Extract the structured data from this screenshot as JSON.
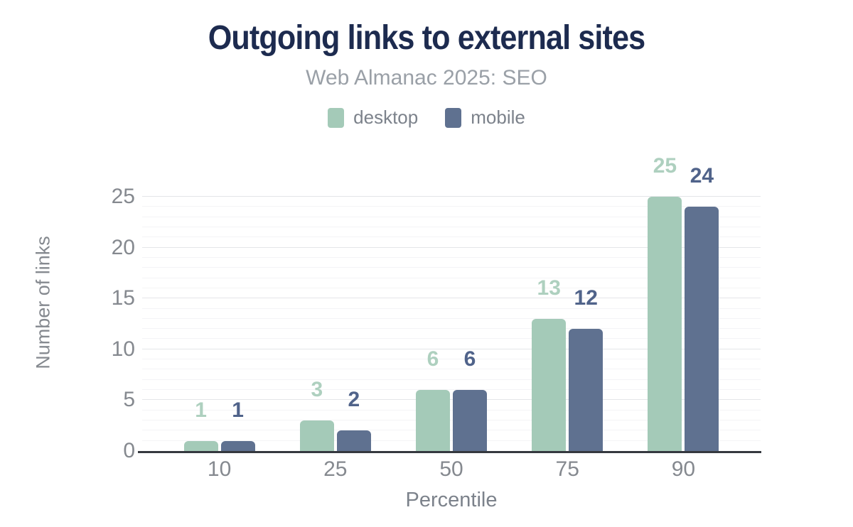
{
  "chart_data": {
    "type": "bar",
    "title": "Outgoing links to external sites",
    "subtitle": "Web Almanac 2025: SEO",
    "categories": [
      "10",
      "25",
      "50",
      "75",
      "90"
    ],
    "series": [
      {
        "name": "desktop",
        "color": "#a4cab8",
        "label_color": "#aed0bf",
        "values": [
          1,
          3,
          6,
          13,
          25
        ]
      },
      {
        "name": "mobile",
        "color": "#5f7190",
        "label_color": "#50638a",
        "values": [
          1,
          2,
          6,
          12,
          24
        ]
      }
    ],
    "xlabel": "Percentile",
    "ylabel": "Number of links",
    "ylim": [
      0,
      25
    ],
    "yticks": [
      0,
      5,
      10,
      15,
      20,
      25
    ],
    "grid": {
      "orientation": "horizontal",
      "minor_step": 1,
      "major_step": 5
    },
    "legend_position": "top",
    "bar_labels": true
  },
  "colors": {
    "title": "#1d2b4f",
    "subtitle": "#9aa0a7",
    "axis_text": "#85898f",
    "axis_title": "#7c828b",
    "axis_line": "#35393f",
    "grid_major": "#e4e5e8",
    "grid_minor": "#f4f4f6"
  }
}
